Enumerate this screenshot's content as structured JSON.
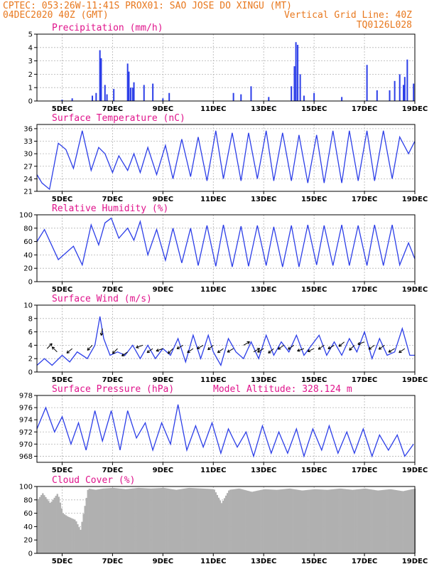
{
  "header": {
    "line1": "CPTEC:   053:26W-11:41S   PROX01: SAO JOSE DO XINGU (MT)",
    "line2_left": "04DEC2020 40Z (GMT)",
    "line2_right": "Vertical Grid Line: 40Z",
    "line3_right": "TQ0126L028"
  },
  "colors": {
    "header": "#e8781e",
    "titles": "#e0148c",
    "series": "#2c3ee8",
    "cloud": "#b0b0b0",
    "grid": "#b4b4b4"
  },
  "chart_data": [
    {
      "type": "bar",
      "title": "Precipitation (mm/h)",
      "x_tick_labels": [
        "5DEC",
        "7DEC",
        "9DEC",
        "11DEC",
        "13DEC",
        "15DEC",
        "17DEC",
        "19DEC"
      ],
      "y_tick_labels": [
        "0",
        "1",
        "2",
        "3",
        "4",
        "5"
      ],
      "ylim": [
        0,
        5
      ],
      "grid": true,
      "x_unit": "day of December 2020 (from 4.0)",
      "x": [
        5.0,
        5.4,
        6.2,
        6.35,
        6.5,
        6.55,
        6.7,
        6.78,
        7.05,
        7.6,
        7.65,
        7.72,
        7.8,
        7.85,
        8.25,
        8.6,
        9.0,
        9.25,
        11.8,
        12.1,
        12.5,
        13.2,
        14.1,
        14.22,
        14.28,
        14.35,
        14.45,
        14.6,
        15.0,
        16.1,
        17.1,
        17.5,
        18.0,
        18.2,
        18.4,
        18.55,
        18.6,
        18.7,
        18.95
      ],
      "values": [
        0.1,
        0.2,
        0.4,
        0.6,
        3.8,
        3.2,
        1.2,
        0.5,
        0.9,
        2.8,
        2.2,
        1.0,
        1.0,
        1.4,
        1.2,
        1.3,
        0.2,
        0.6,
        0.6,
        0.5,
        1.1,
        0.3,
        1.1,
        2.6,
        4.4,
        4.2,
        2.0,
        0.4,
        0.6,
        0.3,
        2.7,
        0.8,
        0.8,
        1.5,
        2.0,
        1.2,
        1.8,
        3.1,
        1.3
      ]
    },
    {
      "type": "line",
      "title": "Surface Temperature (nC)",
      "x_tick_labels": [
        "5DEC",
        "7DEC",
        "9DEC",
        "11DEC",
        "13DEC",
        "15DEC",
        "17DEC",
        "19DEC"
      ],
      "y_tick_labels": [
        "21",
        "24",
        "27",
        "30",
        "33",
        "36"
      ],
      "ylim": [
        21,
        37
      ],
      "grid": true,
      "x": [
        4.0,
        4.2,
        4.5,
        4.85,
        5.15,
        5.45,
        5.8,
        6.15,
        6.45,
        6.7,
        7.0,
        7.25,
        7.6,
        7.85,
        8.1,
        8.4,
        8.75,
        9.1,
        9.4,
        9.75,
        10.1,
        10.4,
        10.75,
        11.1,
        11.4,
        11.75,
        12.1,
        12.4,
        12.75,
        13.1,
        13.4,
        13.75,
        14.1,
        14.4,
        14.75,
        15.1,
        15.4,
        15.75,
        16.1,
        16.4,
        16.75,
        17.1,
        17.4,
        17.75,
        18.1,
        18.4,
        18.75,
        19.0
      ],
      "values": [
        25,
        23,
        21.5,
        32.5,
        31,
        26.5,
        35.5,
        26,
        31.5,
        30,
        25.5,
        29.5,
        26,
        30,
        25.5,
        31.5,
        25,
        32,
        24,
        33.5,
        24.5,
        34,
        23.5,
        35.5,
        24,
        35,
        23.5,
        35,
        24,
        35.5,
        23.5,
        35,
        23.5,
        34.5,
        23,
        34.5,
        23,
        35.5,
        23,
        35.5,
        23.5,
        35.5,
        23.5,
        35.5,
        24,
        34,
        30,
        33
      ]
    },
    {
      "type": "line",
      "title": "Relative Humidity (%)",
      "x_tick_labels": [
        "5DEC",
        "7DEC",
        "9DEC",
        "11DEC",
        "13DEC",
        "15DEC",
        "17DEC",
        "19DEC"
      ],
      "y_tick_labels": [
        "0",
        "20",
        "40",
        "60",
        "80",
        "100"
      ],
      "ylim": [
        0,
        100
      ],
      "grid": true,
      "x": [
        4.0,
        4.3,
        4.85,
        5.45,
        5.8,
        6.15,
        6.45,
        6.7,
        6.95,
        7.25,
        7.6,
        7.85,
        8.1,
        8.4,
        8.75,
        9.1,
        9.4,
        9.75,
        10.1,
        10.4,
        10.75,
        11.1,
        11.4,
        11.75,
        12.1,
        12.4,
        12.75,
        13.1,
        13.4,
        13.75,
        14.1,
        14.4,
        14.75,
        15.1,
        15.4,
        15.75,
        16.1,
        16.4,
        16.75,
        17.1,
        17.4,
        17.75,
        18.1,
        18.4,
        18.75,
        19.0
      ],
      "values": [
        60,
        78,
        33,
        53,
        25,
        85,
        55,
        88,
        95,
        65,
        80,
        62,
        90,
        40,
        78,
        32,
        80,
        28,
        80,
        24,
        84,
        23,
        85,
        22,
        83,
        23,
        84,
        24,
        82,
        22,
        84,
        22,
        85,
        25,
        84,
        24,
        85,
        24,
        84,
        24,
        85,
        24,
        85,
        25,
        58,
        34
      ]
    },
    {
      "type": "line",
      "title": "Surface Wind (m/s)",
      "x_tick_labels": [
        "5DEC",
        "7DEC",
        "9DEC",
        "11DEC",
        "13DEC",
        "15DEC",
        "17DEC",
        "19DEC"
      ],
      "y_tick_labels": [
        "0",
        "2",
        "4",
        "6",
        "8",
        "10"
      ],
      "ylim": [
        0,
        10
      ],
      "grid": true,
      "x": [
        4.0,
        4.3,
        4.6,
        5.0,
        5.3,
        5.6,
        6.0,
        6.3,
        6.5,
        6.65,
        6.9,
        7.2,
        7.5,
        7.8,
        8.1,
        8.4,
        8.7,
        9.0,
        9.3,
        9.6,
        9.9,
        10.2,
        10.5,
        10.8,
        11.0,
        11.3,
        11.6,
        11.9,
        12.2,
        12.5,
        12.8,
        13.1,
        13.4,
        13.7,
        14.0,
        14.3,
        14.6,
        14.9,
        15.2,
        15.5,
        15.8,
        16.1,
        16.4,
        16.7,
        17.0,
        17.3,
        17.6,
        17.9,
        18.2,
        18.5,
        18.8,
        19.0
      ],
      "values": [
        1.0,
        2.0,
        1.0,
        2.5,
        1.5,
        3.0,
        2.0,
        4.0,
        8.3,
        5.0,
        2.5,
        3.0,
        2.5,
        4.0,
        2.0,
        4.0,
        2.0,
        3.5,
        2.5,
        5.0,
        1.5,
        5.5,
        2.0,
        5.5,
        3.0,
        1.0,
        5.0,
        3.0,
        2.0,
        4.5,
        2.0,
        5.5,
        2.5,
        4.5,
        3.0,
        5.5,
        2.5,
        4.0,
        5.5,
        2.5,
        4.5,
        2.5,
        5.0,
        3.0,
        6.0,
        2.0,
        5.0,
        2.5,
        3.0,
        6.5,
        2.5,
        2.5
      ],
      "arrows": {
        "x": [
          4.4,
          4.8,
          5.4,
          6.2,
          6.6,
          7.2,
          7.6,
          8.2,
          8.6,
          9.0,
          9.4,
          9.8,
          10.2,
          10.6,
          11.0,
          11.4,
          11.8,
          12.2,
          12.6,
          13.0,
          13.4,
          13.8,
          14.2,
          14.6,
          15.0,
          15.4,
          15.8,
          16.2,
          16.6,
          17.0,
          17.4,
          17.8,
          18.2,
          18.6
        ],
        "speed": [
          3.5,
          3.0,
          3.5,
          4.0,
          6.5,
          3.5,
          3.0,
          4.0,
          3.5,
          3.5,
          3.5,
          4.0,
          3.5,
          4.0,
          4.0,
          3.5,
          3.5,
          4.0,
          3.0,
          3.5,
          3.5,
          4.0,
          4.0,
          3.5,
          3.5,
          4.0,
          4.0,
          4.5,
          4.0,
          4.5,
          4.0,
          4.0,
          3.5,
          3.5
        ],
        "angle_deg": [
          45,
          135,
          220,
          225,
          260,
          225,
          215,
          200,
          215,
          200,
          225,
          210,
          215,
          210,
          220,
          215,
          210,
          30,
          30,
          210,
          220,
          215,
          215,
          200,
          205,
          215,
          210,
          220,
          225,
          200,
          215,
          215,
          210,
          215
        ]
      }
    },
    {
      "type": "line",
      "title": "Surface Pressure (hPa)",
      "annotation": "Model Altitude: 328.124 m",
      "x_tick_labels": [
        "5DEC",
        "7DEC",
        "9DEC",
        "11DEC",
        "13DEC",
        "15DEC",
        "17DEC",
        "19DEC"
      ],
      "y_tick_labels": [
        "968",
        "970",
        "972",
        "974",
        "976",
        "978"
      ],
      "ylim": [
        967,
        978
      ],
      "grid": true,
      "x": [
        4.0,
        4.35,
        4.7,
        5.0,
        5.35,
        5.65,
        5.95,
        6.3,
        6.6,
        6.95,
        7.3,
        7.6,
        7.95,
        8.3,
        8.6,
        8.95,
        9.3,
        9.6,
        9.95,
        10.3,
        10.6,
        10.95,
        11.3,
        11.6,
        11.95,
        12.3,
        12.6,
        12.95,
        13.3,
        13.6,
        13.95,
        14.3,
        14.6,
        14.95,
        15.3,
        15.6,
        15.95,
        16.3,
        16.6,
        16.95,
        17.3,
        17.6,
        17.95,
        18.3,
        18.6,
        18.95
      ],
      "values": [
        972.5,
        976.0,
        972.0,
        974.5,
        970.0,
        973.5,
        969.0,
        975.5,
        970.5,
        975.5,
        969.0,
        975.5,
        971.0,
        973.5,
        969.0,
        973.5,
        970.0,
        976.5,
        969.0,
        973.0,
        969.5,
        973.5,
        968.5,
        972.5,
        969.5,
        972.0,
        968.0,
        973.0,
        968.5,
        972.0,
        968.5,
        972.5,
        968.0,
        972.5,
        969.0,
        973.0,
        968.5,
        972.0,
        968.5,
        972.5,
        968.0,
        971.5,
        969.0,
        971.5,
        968.0,
        970.0
      ]
    },
    {
      "type": "area",
      "title": "Cloud Cover (%)",
      "x_tick_labels": [
        "5DEC",
        "7DEC",
        "9DEC",
        "11DEC",
        "13DEC",
        "15DEC",
        "17DEC",
        "19DEC"
      ],
      "y_tick_labels": [
        "0",
        "20",
        "40",
        "60",
        "80",
        "100"
      ],
      "ylim": [
        0,
        100
      ],
      "grid": true,
      "x": [
        4.0,
        4.2,
        4.5,
        4.8,
        5.0,
        5.2,
        5.5,
        5.7,
        6.0,
        6.3,
        6.6,
        7.0,
        7.5,
        8.0,
        8.5,
        9.0,
        9.5,
        10.0,
        10.5,
        11.0,
        11.3,
        11.6,
        12.0,
        12.5,
        13.0,
        13.5,
        14.0,
        14.5,
        15.0,
        15.5,
        16.0,
        16.5,
        17.0,
        17.5,
        18.0,
        18.5,
        19.0
      ],
      "values": [
        80,
        90,
        75,
        90,
        60,
        55,
        50,
        35,
        97,
        95,
        97,
        98,
        96,
        98,
        97,
        98,
        95,
        98,
        97,
        96,
        75,
        95,
        97,
        92,
        96,
        95,
        97,
        94,
        96,
        95,
        97,
        95,
        97,
        94,
        96,
        93,
        97
      ]
    }
  ]
}
